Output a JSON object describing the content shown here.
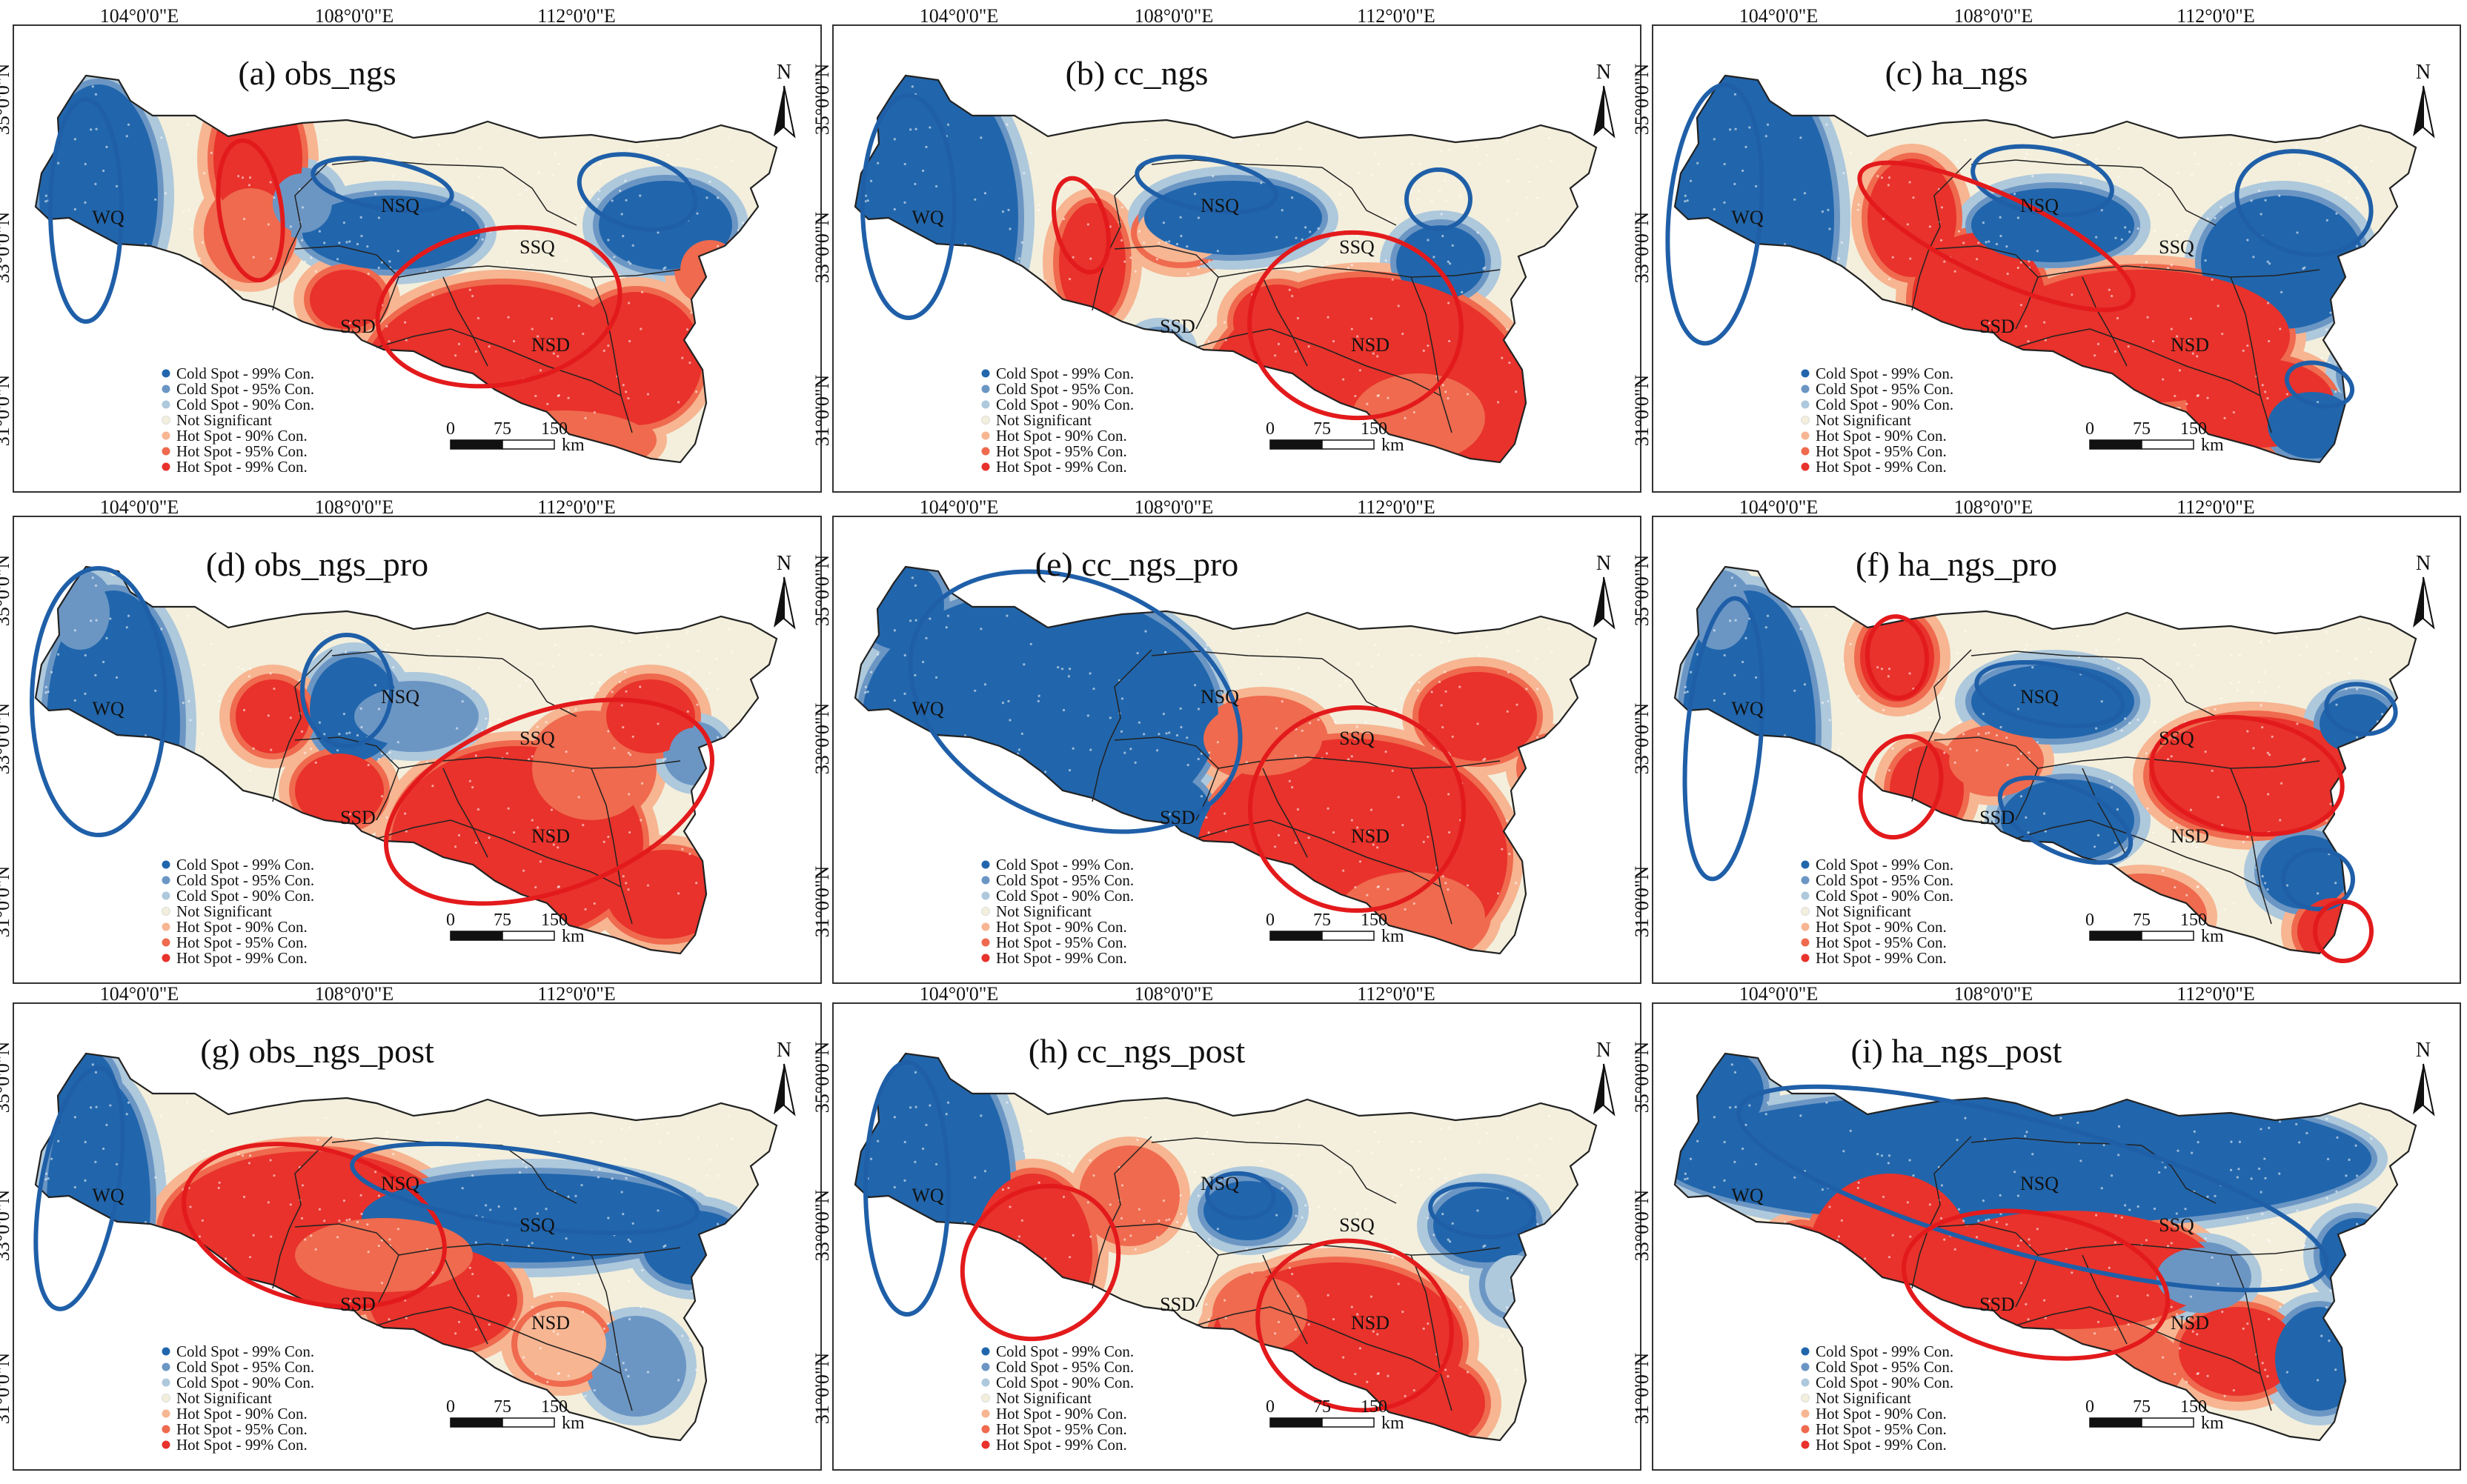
{
  "figure": {
    "colors": {
      "cold99": "#2166ac",
      "cold95": "#6b96c4",
      "cold90": "#aec8dc",
      "ns": "#f3efdc",
      "hot90": "#f7b592",
      "hot95": "#ef6a4e",
      "hot99": "#e8322b",
      "ellipse_cold": "#1f5fa8",
      "ellipse_hot": "#e31a1c",
      "outline": "#222222"
    },
    "lon_labels": [
      "104°0'0\"E",
      "108°0'0\"E",
      "112°0'0\"E"
    ],
    "lat_labels": [
      "35°0'0\"N",
      "33°0'0\"N",
      "31°0'0\"N"
    ],
    "north_letter": "N",
    "scale": {
      "ticks": [
        "0",
        "75",
        "150"
      ],
      "unit": "km"
    },
    "legend": [
      {
        "label": "Cold Spot - 99% Con.",
        "color_key": "cold99"
      },
      {
        "label": "Cold Spot - 95% Con.",
        "color_key": "cold95"
      },
      {
        "label": "Cold Spot - 90% Con.",
        "color_key": "cold90"
      },
      {
        "label": "Not Significant",
        "color_key": "ns"
      },
      {
        "label": "Hot Spot - 90% Con.",
        "color_key": "hot90"
      },
      {
        "label": "Hot Spot - 95% Con.",
        "color_key": "hot95"
      },
      {
        "label": "Hot Spot - 99% Con.",
        "color_key": "hot99"
      }
    ],
    "panels": [
      {
        "title": "(a) obs_ngs",
        "regions": [
          "WQ",
          "NSQ",
          "SSQ",
          "SSD",
          "NSD"
        ]
      },
      {
        "title": "(b) cc_ngs",
        "regions": [
          "WQ",
          "NSQ",
          "SSQ",
          "SSD",
          "NSD"
        ]
      },
      {
        "title": "(c) ha_ngs",
        "regions": [
          "WQ",
          "NSQ",
          "SSQ",
          "SSD",
          "NSD"
        ]
      },
      {
        "title": "(d) obs_ngs_pro",
        "regions": [
          "WQ",
          "NSQ",
          "SSQ",
          "SSD",
          "NSD"
        ]
      },
      {
        "title": "(e) cc_ngs_pro",
        "regions": [
          "WQ",
          "NSQ",
          "SSQ",
          "SSD",
          "NSD"
        ]
      },
      {
        "title": "(f) ha_ngs_pro",
        "regions": [
          "WQ",
          "NSQ",
          "SSQ",
          "SSD",
          "NSD"
        ]
      },
      {
        "title": "(g) obs_ngs_post",
        "regions": [
          "WQ",
          "NSQ",
          "SSQ",
          "SSD",
          "NSD"
        ]
      },
      {
        "title": "(h) cc_ngs_post",
        "regions": [
          "WQ",
          "NSQ",
          "SSQ",
          "SSD",
          "NSD"
        ]
      },
      {
        "title": "(i) ha_ngs_post",
        "regions": [
          "WQ",
          "NSQ",
          "SSQ",
          "SSD",
          "NSD"
        ]
      }
    ]
  }
}
